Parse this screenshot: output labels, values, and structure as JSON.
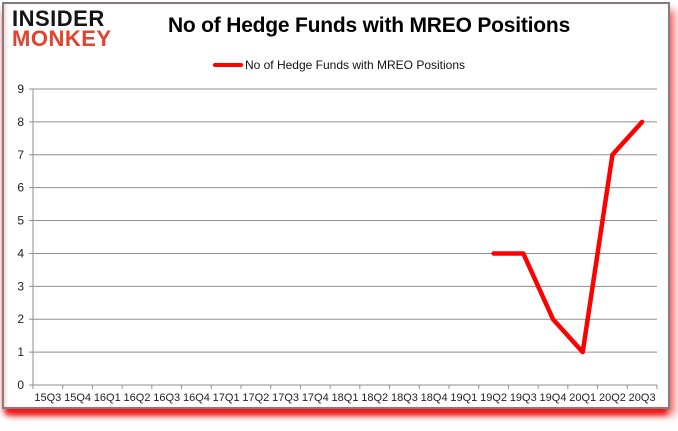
{
  "branding": {
    "logo_line1": "INSIDER",
    "logo_line2": "MONKEY",
    "logo_color_top": "#141414",
    "logo_color_bottom": "#e2432e"
  },
  "header": {
    "title": "No of Hedge Funds with MREO Positions"
  },
  "legend": {
    "label": "No of Hedge Funds with MREO Positions",
    "swatch_color": "#ff0000"
  },
  "colors": {
    "line": "#ff0000",
    "grid": "#8f8f8f",
    "axis": "#8f8f8f",
    "text": "#1f1f1f",
    "border": "#7f7f7f",
    "shadow": "#ed1212"
  },
  "chart_data": {
    "type": "line",
    "title": "No of Hedge Funds with MREO Positions",
    "categories": [
      "15Q3",
      "15Q4",
      "16Q1",
      "16Q2",
      "16Q3",
      "16Q4",
      "17Q1",
      "17Q2",
      "17Q3",
      "17Q4",
      "18Q1",
      "18Q2",
      "18Q3",
      "18Q4",
      "19Q1",
      "19Q2",
      "19Q3",
      "19Q4",
      "20Q1",
      "20Q2",
      "20Q3"
    ],
    "series": [
      {
        "name": "No of Hedge Funds with MREO Positions",
        "color": "#ff0000",
        "values": [
          null,
          null,
          null,
          null,
          null,
          null,
          null,
          null,
          null,
          null,
          null,
          null,
          null,
          null,
          null,
          4,
          4,
          2,
          1,
          7,
          8
        ]
      }
    ],
    "xlabel": "",
    "ylabel": "",
    "ylim": [
      0,
      9
    ],
    "yticks": [
      0,
      1,
      2,
      3,
      4,
      5,
      6,
      7,
      8,
      9
    ],
    "grid": "horizontal",
    "legend_position": "top"
  }
}
